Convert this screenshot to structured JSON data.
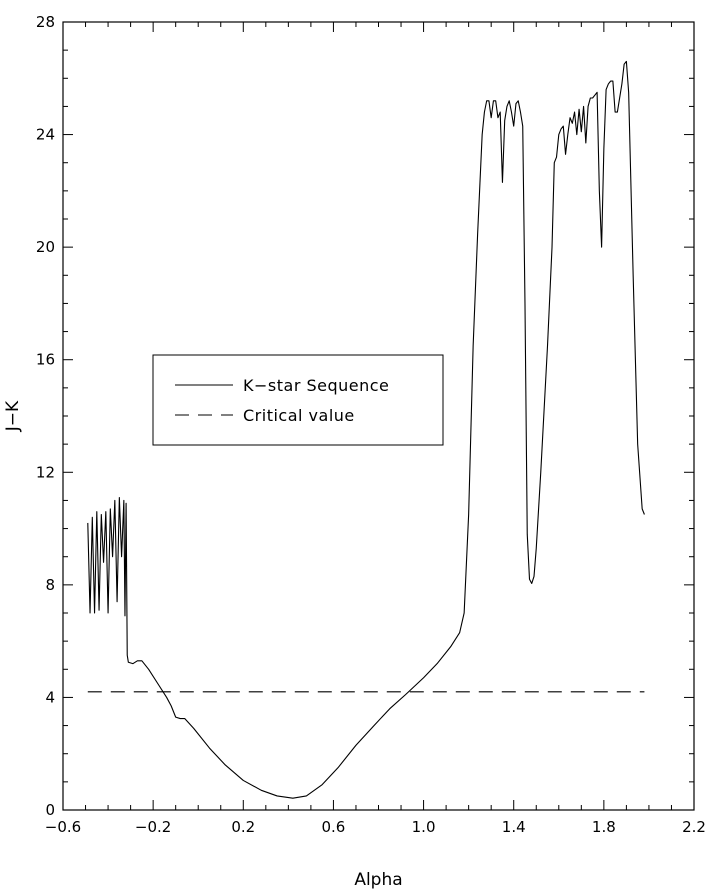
{
  "chart_data": {
    "type": "line",
    "xlabel": "Alpha",
    "ylabel": "J−K",
    "xlim": [
      -0.6,
      2.2
    ],
    "ylim": [
      0,
      28
    ],
    "xticks": [
      -0.6,
      -0.2,
      0.2,
      0.6,
      1.0,
      1.4,
      1.8,
      2.2
    ],
    "xtick_labels": [
      "−0.6",
      "−0.2",
      "0.2",
      "0.6",
      "1.0",
      "1.4",
      "1.8",
      "2.2"
    ],
    "yticks": [
      0,
      4,
      8,
      12,
      16,
      20,
      24,
      28
    ],
    "ytick_labels": [
      "0",
      "4",
      "8",
      "12",
      "16",
      "20",
      "24",
      "28"
    ],
    "grid": false,
    "legend": {
      "placement": "center-left"
    },
    "series": [
      {
        "name": "K−star Sequence",
        "style": "solid",
        "color": "#000000",
        "points": [
          [
            -0.49,
            10.2
          ],
          [
            -0.48,
            7.0
          ],
          [
            -0.47,
            10.4
          ],
          [
            -0.46,
            7.0
          ],
          [
            -0.45,
            10.6
          ],
          [
            -0.44,
            7.1
          ],
          [
            -0.43,
            10.5
          ],
          [
            -0.42,
            8.8
          ],
          [
            -0.41,
            10.6
          ],
          [
            -0.4,
            7.0
          ],
          [
            -0.39,
            10.7
          ],
          [
            -0.38,
            9.0
          ],
          [
            -0.37,
            11.0
          ],
          [
            -0.36,
            7.4
          ],
          [
            -0.35,
            11.1
          ],
          [
            -0.34,
            9.0
          ],
          [
            -0.33,
            11.0
          ],
          [
            -0.325,
            6.9
          ],
          [
            -0.32,
            10.9
          ],
          [
            -0.315,
            5.5
          ],
          [
            -0.31,
            5.25
          ],
          [
            -0.29,
            5.2
          ],
          [
            -0.27,
            5.3
          ],
          [
            -0.25,
            5.3
          ],
          [
            -0.22,
            5.0
          ],
          [
            -0.18,
            4.5
          ],
          [
            -0.14,
            4.0
          ],
          [
            -0.12,
            3.7
          ],
          [
            -0.1,
            3.3
          ],
          [
            -0.08,
            3.25
          ],
          [
            -0.06,
            3.25
          ],
          [
            -0.02,
            2.9
          ],
          [
            0.05,
            2.2
          ],
          [
            0.12,
            1.6
          ],
          [
            0.2,
            1.05
          ],
          [
            0.28,
            0.7
          ],
          [
            0.35,
            0.5
          ],
          [
            0.42,
            0.42
          ],
          [
            0.48,
            0.5
          ],
          [
            0.55,
            0.9
          ],
          [
            0.62,
            1.5
          ],
          [
            0.7,
            2.3
          ],
          [
            0.78,
            3.0
          ],
          [
            0.85,
            3.6
          ],
          [
            0.92,
            4.1
          ],
          [
            1.0,
            4.7
          ],
          [
            1.06,
            5.2
          ],
          [
            1.12,
            5.8
          ],
          [
            1.16,
            6.3
          ],
          [
            1.18,
            7.0
          ],
          [
            1.2,
            10.5
          ],
          [
            1.22,
            16.5
          ],
          [
            1.24,
            20.5
          ],
          [
            1.26,
            24.0
          ],
          [
            1.27,
            24.8
          ],
          [
            1.28,
            25.2
          ],
          [
            1.29,
            25.2
          ],
          [
            1.3,
            24.6
          ],
          [
            1.31,
            25.2
          ],
          [
            1.32,
            25.2
          ],
          [
            1.33,
            24.6
          ],
          [
            1.34,
            24.8
          ],
          [
            1.35,
            22.3
          ],
          [
            1.36,
            24.5
          ],
          [
            1.37,
            25.0
          ],
          [
            1.38,
            25.2
          ],
          [
            1.39,
            24.8
          ],
          [
            1.4,
            24.3
          ],
          [
            1.41,
            25.1
          ],
          [
            1.42,
            25.2
          ],
          [
            1.43,
            24.8
          ],
          [
            1.44,
            24.3
          ],
          [
            1.45,
            18.0
          ],
          [
            1.46,
            9.8
          ],
          [
            1.47,
            8.2
          ],
          [
            1.48,
            8.05
          ],
          [
            1.49,
            8.3
          ],
          [
            1.5,
            9.3
          ],
          [
            1.52,
            12.0
          ],
          [
            1.55,
            16.5
          ],
          [
            1.57,
            20.0
          ],
          [
            1.58,
            23.0
          ],
          [
            1.59,
            23.2
          ],
          [
            1.6,
            24.0
          ],
          [
            1.61,
            24.2
          ],
          [
            1.62,
            24.3
          ],
          [
            1.63,
            23.3
          ],
          [
            1.64,
            24.0
          ],
          [
            1.65,
            24.6
          ],
          [
            1.66,
            24.4
          ],
          [
            1.67,
            24.8
          ],
          [
            1.68,
            24.0
          ],
          [
            1.69,
            24.9
          ],
          [
            1.7,
            24.1
          ],
          [
            1.71,
            25.0
          ],
          [
            1.72,
            23.7
          ],
          [
            1.73,
            25.0
          ],
          [
            1.74,
            25.3
          ],
          [
            1.75,
            25.3
          ],
          [
            1.76,
            25.4
          ],
          [
            1.77,
            25.5
          ],
          [
            1.78,
            22.0
          ],
          [
            1.79,
            20.0
          ],
          [
            1.8,
            23.5
          ],
          [
            1.81,
            25.6
          ],
          [
            1.82,
            25.8
          ],
          [
            1.83,
            25.9
          ],
          [
            1.84,
            25.9
          ],
          [
            1.85,
            24.8
          ],
          [
            1.86,
            24.8
          ],
          [
            1.87,
            25.3
          ],
          [
            1.88,
            25.8
          ],
          [
            1.89,
            26.5
          ],
          [
            1.9,
            26.6
          ],
          [
            1.91,
            25.5
          ],
          [
            1.93,
            19.0
          ],
          [
            1.95,
            13.0
          ],
          [
            1.97,
            10.7
          ],
          [
            1.98,
            10.5
          ]
        ]
      },
      {
        "name": "Critical value",
        "style": "dashed",
        "color": "#000000",
        "points": [
          [
            -0.49,
            4.2
          ],
          [
            1.98,
            4.2
          ]
        ]
      }
    ]
  }
}
